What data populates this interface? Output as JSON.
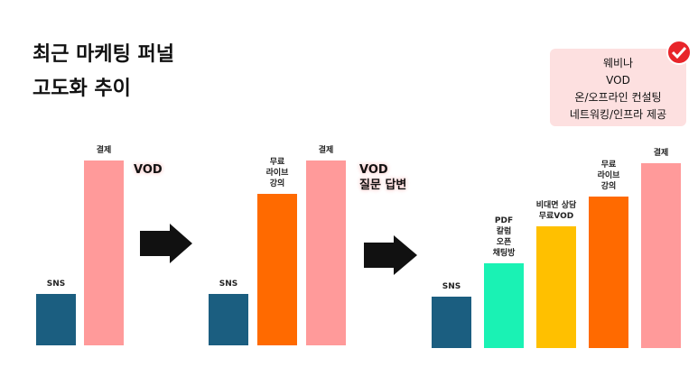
{
  "title": "최근 마케팅 퍼널\n고도화 추이",
  "box_text": "웨비나\nVOD\n온/오프라인 컨설팅\n네트워킹/인프라 제공",
  "chart_data": [
    {
      "type": "bar",
      "annotation": "VOD",
      "ylim": [
        0,
        100
      ],
      "categories": [
        "SNS",
        "결제"
      ],
      "values": [
        28,
        100
      ],
      "colors": [
        "#1b5e80",
        "#ff9a9a"
      ]
    },
    {
      "type": "bar",
      "annotation": "VOD\n질문 답변",
      "ylim": [
        0,
        100
      ],
      "categories": [
        "SNS",
        "무료\n라이브\n강의",
        "결제"
      ],
      "values": [
        28,
        82,
        100
      ],
      "colors": [
        "#1b5e80",
        "#ff6a00",
        "#ff9a9a"
      ]
    },
    {
      "type": "bar",
      "ylim": [
        0,
        100
      ],
      "categories": [
        "SNS",
        "PDF\n칼럼\n오픈\n채팅방",
        "비대면 상담\n무료VOD",
        "무료\n라이브\n강의",
        "결제"
      ],
      "values": [
        28,
        46,
        66,
        82,
        100
      ],
      "colors": [
        "#1b5e80",
        "#1af2b4",
        "#ffc000",
        "#ff6a00",
        "#ff9a9a"
      ]
    }
  ]
}
